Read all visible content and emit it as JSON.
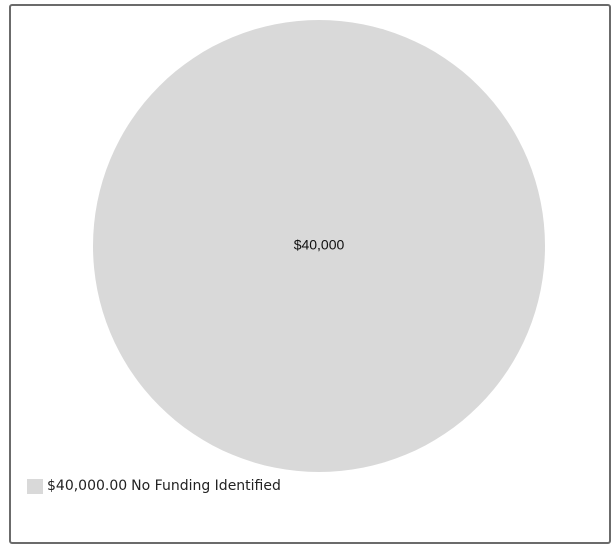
{
  "chart_data": {
    "type": "pie",
    "slices": [
      {
        "label": "No Funding Identified",
        "value": 40000,
        "data_label": "$40,000",
        "color": "#d9d9d9"
      }
    ],
    "legend": {
      "placement": "bottom-left",
      "entries": [
        {
          "amount": "$40,000.00",
          "label": "No Funding Identified",
          "color": "#d9d9d9"
        }
      ]
    }
  }
}
